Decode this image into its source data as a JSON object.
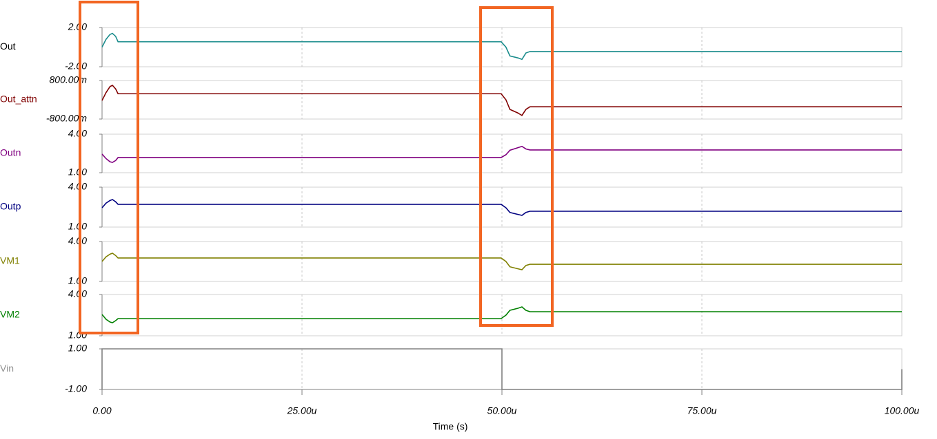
{
  "chart_data": [
    {
      "type": "line",
      "name": "Out",
      "color": "#1a8c8c",
      "label_color": "#000000",
      "ylim": [
        -2,
        2
      ],
      "yticks": [
        {
          "value": 2,
          "label": "2.00"
        },
        {
          "value": -2,
          "label": "-2.00"
        }
      ],
      "x": [
        0,
        5e-07,
        1e-06,
        1.3e-06,
        1.7e-06,
        2e-06,
        4.99e-05,
        5.05e-05,
        5.1e-05,
        5.2e-05,
        5.25e-05,
        5.3e-05,
        5.35e-05,
        0.0001
      ],
      "values": [
        0,
        0.8,
        1.3,
        1.4,
        1.1,
        0.55,
        0.55,
        0,
        -0.9,
        -1.1,
        -1.25,
        -0.6,
        -0.45,
        -0.45
      ]
    },
    {
      "type": "line",
      "name": "Out_attn",
      "color": "#800000",
      "label_color": "#800000",
      "ylim": [
        -0.8,
        0.8
      ],
      "yticks": [
        {
          "value": 0.8,
          "label": "800.00m"
        },
        {
          "value": -0.8,
          "label": "-800.00m"
        }
      ],
      "x": [
        0,
        5e-07,
        1e-06,
        1.3e-06,
        1.7e-06,
        2e-06,
        4.99e-05,
        5.05e-05,
        5.1e-05,
        5.2e-05,
        5.25e-05,
        5.3e-05,
        5.35e-05,
        0.0001
      ],
      "values": [
        -0.03,
        0.3,
        0.55,
        0.6,
        0.45,
        0.25,
        0.25,
        0,
        -0.4,
        -0.55,
        -0.65,
        -0.4,
        -0.29,
        -0.29
      ]
    },
    {
      "type": "line",
      "name": "Outn",
      "color": "#800080",
      "label_color": "#800080",
      "ylim": [
        1,
        4
      ],
      "yticks": [
        {
          "value": 4,
          "label": "4.00"
        },
        {
          "value": 1,
          "label": "1.00"
        }
      ],
      "x": [
        0,
        5e-07,
        1e-06,
        1.3e-06,
        1.7e-06,
        2e-06,
        4.99e-05,
        5.05e-05,
        5.1e-05,
        5.2e-05,
        5.25e-05,
        5.3e-05,
        5.35e-05,
        0.0001
      ],
      "values": [
        2.45,
        2.1,
        1.85,
        1.8,
        1.95,
        2.18,
        2.18,
        2.4,
        2.75,
        2.95,
        3.05,
        2.85,
        2.77,
        2.77
      ]
    },
    {
      "type": "line",
      "name": "Outp",
      "color": "#000080",
      "label_color": "#000080",
      "ylim": [
        1,
        4
      ],
      "yticks": [
        {
          "value": 4,
          "label": "4.00"
        },
        {
          "value": 1,
          "label": "1.00"
        }
      ],
      "x": [
        0,
        5e-07,
        1e-06,
        1.3e-06,
        1.7e-06,
        2e-06,
        4.99e-05,
        5.05e-05,
        5.1e-05,
        5.2e-05,
        5.25e-05,
        5.3e-05,
        5.35e-05,
        0.0001
      ],
      "values": [
        2.45,
        2.8,
        3.0,
        3.07,
        2.9,
        2.71,
        2.71,
        2.45,
        2.1,
        1.95,
        1.88,
        2.1,
        2.19,
        2.19
      ]
    },
    {
      "type": "line",
      "name": "VM1",
      "color": "#808000",
      "label_color": "#808000",
      "ylim": [
        1,
        4
      ],
      "yticks": [
        {
          "value": 4,
          "label": "4.00"
        },
        {
          "value": 1,
          "label": "1.00"
        }
      ],
      "x": [
        0,
        5e-07,
        1e-06,
        1.3e-06,
        1.7e-06,
        2e-06,
        4.99e-05,
        5.05e-05,
        5.1e-05,
        5.2e-05,
        5.25e-05,
        5.3e-05,
        5.35e-05,
        0.0001
      ],
      "values": [
        2.5,
        2.85,
        3.05,
        3.12,
        2.95,
        2.76,
        2.76,
        2.5,
        2.1,
        1.95,
        1.88,
        2.2,
        2.29,
        2.29
      ]
    },
    {
      "type": "line",
      "name": "VM2",
      "color": "#008000",
      "label_color": "#008000",
      "ylim": [
        1,
        4
      ],
      "yticks": [
        {
          "value": 4,
          "label": "4.00"
        },
        {
          "value": 1,
          "label": "1.00"
        }
      ],
      "x": [
        0,
        5e-07,
        1e-06,
        1.3e-06,
        1.7e-06,
        2e-06,
        4.99e-05,
        5.05e-05,
        5.1e-05,
        5.2e-05,
        5.25e-05,
        5.3e-05,
        5.35e-05,
        0.0001
      ],
      "values": [
        2.55,
        2.2,
        2.0,
        1.95,
        2.1,
        2.25,
        2.25,
        2.5,
        2.85,
        3.0,
        3.1,
        2.85,
        2.75,
        2.75
      ]
    },
    {
      "type": "line",
      "name": "Vin",
      "color": "#808080",
      "label_color": "#909090",
      "ylim": [
        -1,
        1
      ],
      "yticks": [
        {
          "value": 1,
          "label": "1.00"
        },
        {
          "value": -1,
          "label": "-1.00"
        }
      ],
      "x": [
        0,
        0,
        5e-05,
        5e-05,
        0.0001,
        0.0001
      ],
      "values": [
        -1,
        1,
        1,
        -1,
        -1,
        0
      ],
      "xlim": [
        0,
        0.0001
      ],
      "xticks": [
        {
          "value": 0,
          "label": "0.00"
        },
        {
          "value": 2.5e-05,
          "label": "25.00u"
        },
        {
          "value": 5e-05,
          "label": "50.00u"
        },
        {
          "value": 7.5e-05,
          "label": "75.00u"
        },
        {
          "value": 0.0001,
          "label": "100.00u"
        }
      ],
      "xlabel": "Time (s)"
    }
  ]
}
